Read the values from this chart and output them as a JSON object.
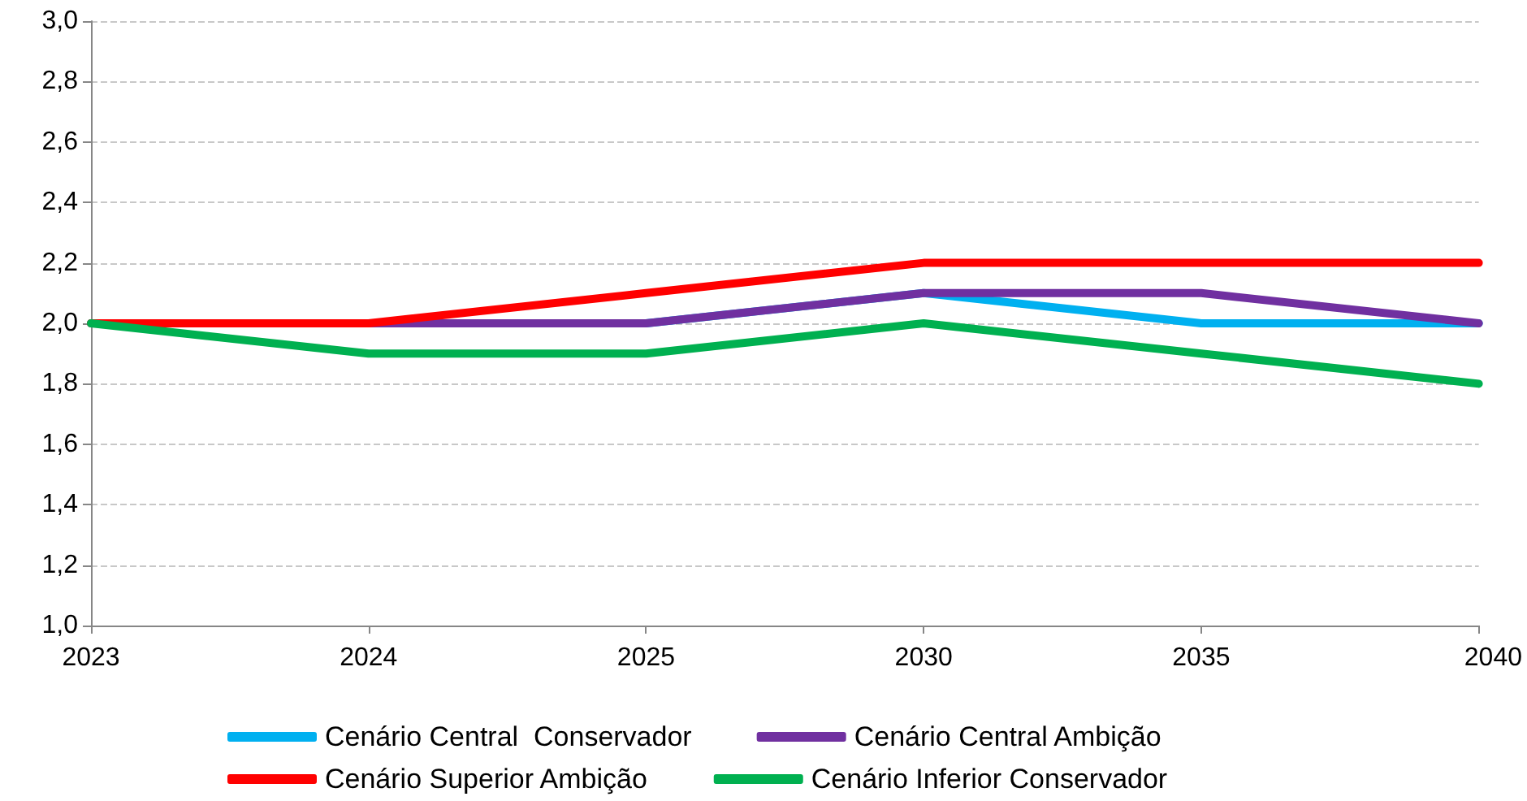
{
  "chart_data": {
    "type": "line",
    "categories": [
      "2023",
      "2024",
      "2025",
      "2030",
      "2035",
      "2040"
    ],
    "series": [
      {
        "name": "Cenário Central  Conservador",
        "color": "#00b0f0",
        "values": [
          null,
          null,
          2.0,
          2.1,
          2.0,
          2.0
        ]
      },
      {
        "name": "Cenário Central Ambição",
        "color": "#7030a0",
        "values": [
          2.0,
          2.0,
          2.0,
          2.1,
          2.1,
          2.0
        ]
      },
      {
        "name": "Cenário Superior Ambição",
        "color": "#ff0000",
        "values": [
          2.0,
          2.0,
          2.1,
          2.2,
          2.2,
          2.2
        ]
      },
      {
        "name": "Cenário Inferior Conservador",
        "color": "#00b050",
        "values": [
          2.0,
          1.9,
          1.9,
          2.0,
          1.9,
          1.8
        ]
      }
    ],
    "ylim": [
      1.0,
      3.0
    ],
    "yticks": [
      {
        "value": 1.0,
        "label": "1,0"
      },
      {
        "value": 1.2,
        "label": "1,2"
      },
      {
        "value": 1.4,
        "label": "1,4"
      },
      {
        "value": 1.6,
        "label": "1,6"
      },
      {
        "value": 1.8,
        "label": "1,8"
      },
      {
        "value": 2.0,
        "label": "2,0"
      },
      {
        "value": 2.2,
        "label": "2,2"
      },
      {
        "value": 2.4,
        "label": "2,4"
      },
      {
        "value": 2.6,
        "label": "2,6"
      },
      {
        "value": 2.8,
        "label": "2,8"
      },
      {
        "value": 3.0,
        "label": "3,0"
      }
    ],
    "grid": "y",
    "legend": "bottom",
    "marker": "none",
    "line_style": "solid"
  }
}
